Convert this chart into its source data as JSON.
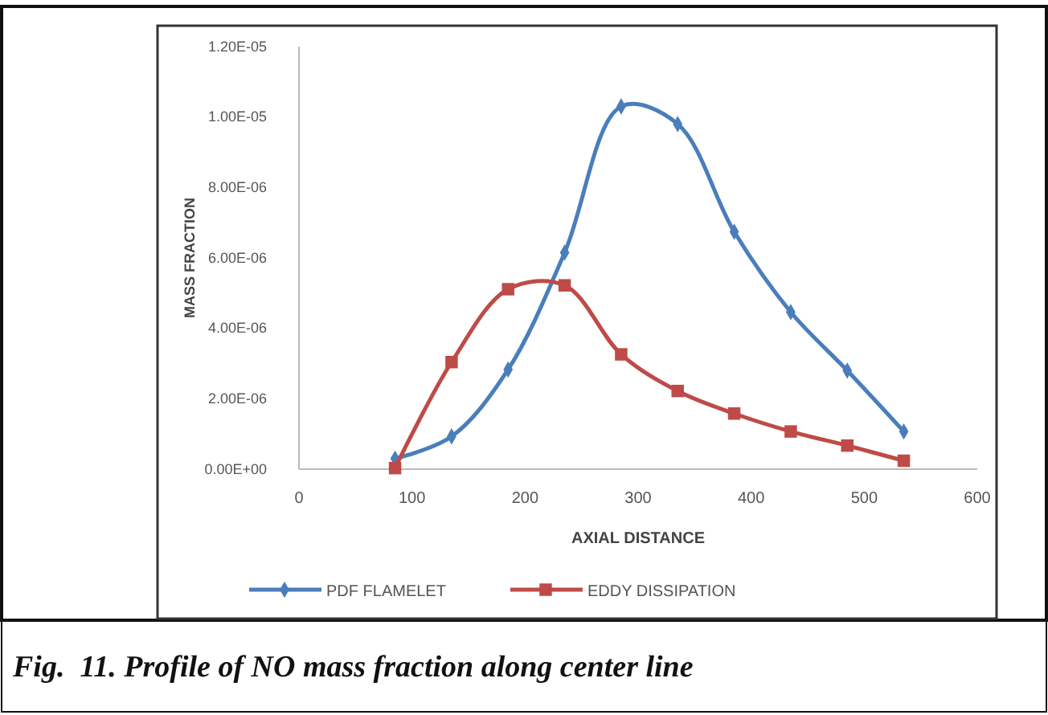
{
  "chart_data": {
    "type": "line",
    "xlabel": "AXIAL DISTANCE",
    "ylabel": "MASS FRACTION",
    "annotations": [
      "Fig.  11. Profile of NO mass fraction along center line"
    ],
    "x": [
      85,
      135,
      185,
      235,
      285,
      335,
      385,
      435,
      485,
      535
    ],
    "series": [
      {
        "name": "PDF FLAMELET",
        "color": "#4a7ebb",
        "marker": "diamond",
        "values": [
          3e-07,
          9.3e-07,
          2.83e-06,
          6.15e-06,
          1.03e-05,
          9.8e-06,
          6.74e-06,
          4.46e-06,
          2.8e-06,
          1.07e-06
        ]
      },
      {
        "name": "EDDY DISSIPATION",
        "color": "#be4b48",
        "marker": "square",
        "values": [
          3e-08,
          3.04e-06,
          5.11e-06,
          5.22e-06,
          3.26e-06,
          2.22e-06,
          1.58e-06,
          1.07e-06,
          6.7e-07,
          2.4e-07
        ]
      }
    ],
    "xlim": [
      0,
      600
    ],
    "xticks": [
      0,
      100,
      200,
      300,
      400,
      500,
      600
    ],
    "ylim": [
      0,
      1.2e-05
    ],
    "yticks": [
      {
        "value": 0,
        "label": "0.00E+00"
      },
      {
        "value": 2e-06,
        "label": "2.00E-06"
      },
      {
        "value": 4e-06,
        "label": "4.00E-06"
      },
      {
        "value": 6e-06,
        "label": "6.00E-06"
      },
      {
        "value": 8e-06,
        "label": "8.00E-06"
      },
      {
        "value": 1e-05,
        "label": "1.00E-05"
      },
      {
        "value": 1.2e-05,
        "label": "1.20E-05"
      }
    ],
    "grid": false,
    "legend": "bottom",
    "line_style": "solid"
  }
}
